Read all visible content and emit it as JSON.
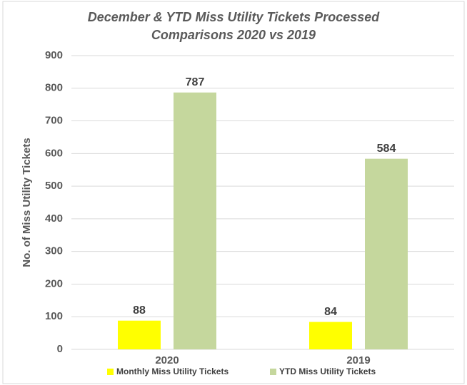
{
  "chart_data": {
    "type": "bar",
    "title": [
      "December & YTD Miss Utility Tickets Processed",
      "Comparisons 2020 vs 2019"
    ],
    "ylabel": "No. of Miss Utility Tickets",
    "categories": [
      "2020",
      "2019"
    ],
    "series": [
      {
        "name": "Monthly Miss Utility Tickets",
        "color": "#ffff00",
        "values": [
          88,
          84
        ]
      },
      {
        "name": "YTD Miss Utility Tickets",
        "color": "#c5d79d",
        "values": [
          787,
          584
        ]
      }
    ],
    "ylim": [
      0,
      900
    ],
    "yticks": [
      0,
      100,
      200,
      300,
      400,
      500,
      600,
      700,
      800,
      900
    ],
    "grid": true,
    "legend": "bottom"
  }
}
